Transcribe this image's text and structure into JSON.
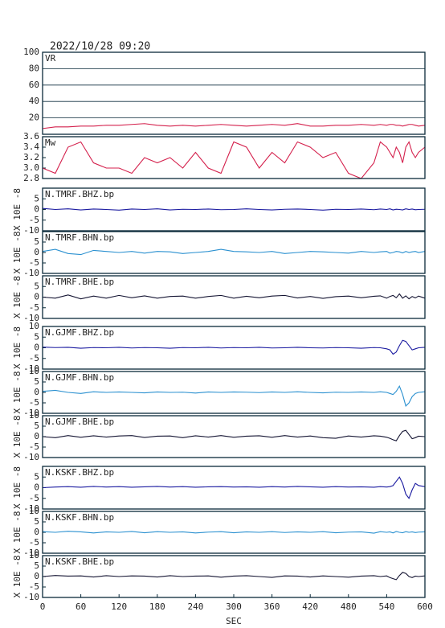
{
  "title": "2022/10/28 09:20",
  "chart_data": [
    {
      "type": "line",
      "title": "VR",
      "color": "#d4204c",
      "ylim": [
        0,
        100
      ],
      "yticks": [
        20,
        40,
        60,
        80,
        100
      ],
      "grid": true,
      "xlim": [
        0,
        600
      ],
      "x": [
        0,
        20,
        40,
        60,
        80,
        100,
        120,
        140,
        160,
        180,
        200,
        220,
        240,
        260,
        280,
        300,
        320,
        340,
        360,
        380,
        400,
        420,
        440,
        460,
        480,
        500,
        520,
        530,
        540,
        545,
        550,
        555,
        560,
        565,
        570,
        575,
        580,
        585,
        590,
        600
      ],
      "values": [
        7,
        9,
        9,
        10,
        10,
        11,
        11,
        12,
        13,
        11,
        10,
        11,
        10,
        11,
        12,
        11,
        10,
        11,
        12,
        11,
        13,
        10,
        10,
        11,
        11,
        12,
        11,
        12,
        11,
        12,
        12,
        11,
        11,
        10,
        11,
        12,
        12,
        11,
        10,
        11
      ]
    },
    {
      "type": "line",
      "title": "Mw",
      "color": "#d4204c",
      "ylim": [
        2.8,
        3.6
      ],
      "yticks": [
        2.8,
        {
          "value": 3.0,
          "label": "3.0"
        },
        3.2,
        3.4,
        3.6
      ],
      "xlim": [
        0,
        600
      ],
      "x": [
        0,
        20,
        40,
        60,
        80,
        100,
        120,
        140,
        160,
        180,
        200,
        220,
        240,
        260,
        280,
        300,
        320,
        340,
        360,
        380,
        400,
        420,
        440,
        460,
        480,
        500,
        520,
        530,
        540,
        545,
        550,
        555,
        560,
        565,
        570,
        575,
        580,
        585,
        590,
        600
      ],
      "values": [
        3.0,
        2.9,
        3.4,
        3.5,
        3.1,
        3.0,
        3.0,
        2.9,
        3.2,
        3.1,
        3.2,
        3.0,
        3.3,
        3.0,
        2.9,
        3.5,
        3.4,
        3.0,
        3.3,
        3.1,
        3.5,
        3.4,
        3.2,
        3.3,
        2.9,
        2.8,
        3.1,
        3.5,
        3.4,
        3.3,
        3.2,
        3.4,
        3.3,
        3.1,
        3.4,
        3.5,
        3.3,
        3.2,
        3.3,
        3.4
      ]
    },
    {
      "type": "line",
      "title": "N.TMRF.BHZ.bp",
      "ylabel": "X 10E -8",
      "color": "#1a1aa0",
      "ylim": [
        -10,
        10
      ],
      "yticks": [
        -10,
        -5,
        0,
        5
      ],
      "xlim": [
        0,
        600
      ],
      "x": [
        0,
        20,
        40,
        60,
        80,
        100,
        120,
        140,
        160,
        180,
        200,
        220,
        240,
        260,
        280,
        300,
        320,
        340,
        360,
        380,
        400,
        420,
        440,
        460,
        480,
        500,
        520,
        530,
        540,
        545,
        550,
        555,
        560,
        565,
        570,
        575,
        580,
        585,
        590,
        600
      ],
      "values": [
        0.5,
        0,
        0.3,
        -0.2,
        0.2,
        0,
        -0.3,
        0.2,
        0,
        0.3,
        -0.2,
        0.1,
        0,
        0.2,
        -0.1,
        0,
        0.3,
        0,
        -0.2,
        0.1,
        0.2,
        0,
        -0.3,
        0.1,
        0,
        0.2,
        -0.1,
        0.2,
        0,
        0.3,
        -0.2,
        0.1,
        0,
        -0.2,
        0.3,
        0,
        0.2,
        -0.1,
        0,
        0.1
      ]
    },
    {
      "type": "line",
      "title": "N.TMRF.BHN.bp",
      "ylabel": "X 10E -8",
      "color": "#2a90d0",
      "ylim": [
        -10,
        10
      ],
      "yticks": [
        -10,
        -5,
        0,
        5
      ],
      "xlim": [
        0,
        600
      ],
      "x": [
        0,
        20,
        40,
        60,
        80,
        100,
        120,
        140,
        160,
        180,
        200,
        220,
        240,
        260,
        280,
        300,
        320,
        340,
        360,
        380,
        400,
        420,
        440,
        460,
        480,
        500,
        520,
        530,
        540,
        545,
        550,
        555,
        560,
        565,
        570,
        575,
        580,
        585,
        590,
        600
      ],
      "values": [
        0.5,
        1.5,
        -0.5,
        -1,
        1,
        0.5,
        0,
        0.5,
        -0.3,
        0.5,
        0.3,
        -0.5,
        0,
        0.5,
        1.5,
        0.5,
        0.3,
        0,
        0.5,
        -0.5,
        0,
        0.5,
        0.3,
        0,
        -0.3,
        0.5,
        0,
        0.3,
        0.5,
        -0.3,
        0,
        0.5,
        0.3,
        -0.2,
        0.5,
        0,
        0.3,
        0.5,
        0,
        0.5
      ]
    },
    {
      "type": "line",
      "title": "N.TMRF.BHE.bp",
      "ylabel": "X 10E -8",
      "color": "#141432",
      "ylim": [
        -10,
        10
      ],
      "yticks": [
        -10,
        -5,
        0,
        5
      ],
      "xlim": [
        0,
        600
      ],
      "x": [
        0,
        20,
        40,
        60,
        80,
        100,
        120,
        140,
        160,
        180,
        200,
        220,
        240,
        260,
        280,
        300,
        320,
        340,
        360,
        380,
        400,
        420,
        440,
        460,
        480,
        500,
        520,
        530,
        540,
        545,
        550,
        555,
        560,
        565,
        570,
        575,
        580,
        585,
        590,
        600
      ],
      "values": [
        0,
        -0.5,
        1,
        -0.8,
        0.5,
        -0.5,
        0.8,
        -0.3,
        0.6,
        -0.5,
        0.3,
        0.5,
        -0.5,
        0.3,
        0.8,
        -0.5,
        0.4,
        -0.3,
        0.5,
        0.8,
        -0.4,
        0.3,
        -0.6,
        0.2,
        0.5,
        -0.3,
        0.4,
        0.6,
        -0.5,
        0.3,
        0.8,
        -0.3,
        1.5,
        -0.5,
        0.6,
        -0.8,
        0.3,
        -0.4,
        0.5,
        -0.5
      ]
    },
    {
      "type": "line",
      "title": "N.GJMF.BHZ.bp",
      "ylabel": "X 10E -8",
      "color": "#1a1aa0",
      "ylim": [
        -10,
        10
      ],
      "yticks": [
        -10,
        -5,
        0,
        5,
        10
      ],
      "xlim": [
        0,
        600
      ],
      "x": [
        0,
        20,
        40,
        60,
        80,
        100,
        120,
        140,
        160,
        180,
        200,
        220,
        240,
        260,
        280,
        300,
        320,
        340,
        360,
        380,
        400,
        420,
        440,
        460,
        480,
        500,
        520,
        530,
        540,
        545,
        550,
        555,
        560,
        565,
        570,
        575,
        580,
        585,
        590,
        600
      ],
      "values": [
        0.3,
        0.1,
        0.2,
        -0.2,
        0.1,
        0,
        0.2,
        -0.1,
        0.1,
        0,
        -0.2,
        0.1,
        0,
        0.2,
        -0.1,
        0.1,
        0,
        0.2,
        -0.1,
        0,
        0.2,
        0,
        -0.1,
        0.1,
        0,
        -0.2,
        0.1,
        0,
        -0.5,
        -1,
        -3,
        -2,
        1,
        3.5,
        3,
        1,
        -1,
        -0.5,
        0,
        0.2
      ]
    },
    {
      "type": "line",
      "title": "N.GJMF.BHN.bp",
      "ylabel": "X 10E -8",
      "color": "#2a90d0",
      "ylim": [
        -10,
        10
      ],
      "yticks": [
        -10,
        -5,
        0,
        5,
        10
      ],
      "xlim": [
        0,
        600
      ],
      "x": [
        0,
        20,
        40,
        60,
        80,
        100,
        120,
        140,
        160,
        180,
        200,
        220,
        240,
        260,
        280,
        300,
        320,
        340,
        360,
        380,
        400,
        420,
        440,
        460,
        480,
        500,
        520,
        530,
        540,
        545,
        550,
        555,
        560,
        565,
        570,
        575,
        580,
        585,
        590,
        600
      ],
      "values": [
        0.5,
        1,
        0,
        -0.5,
        0.3,
        0,
        0.2,
        0,
        -0.2,
        0.2,
        0,
        0.1,
        -0.3,
        0.2,
        0,
        0.2,
        0.1,
        -0.1,
        0.2,
        0,
        0.3,
        0,
        -0.2,
        0.1,
        0,
        0.2,
        0,
        0.3,
        0,
        -0.5,
        -1,
        0.5,
        3,
        -1,
        -6.5,
        -5,
        -2,
        -0.5,
        0,
        0.3
      ]
    },
    {
      "type": "line",
      "title": "N.GJMF.BHE.bp",
      "ylabel": "X 10E -8",
      "color": "#141432",
      "ylim": [
        -10,
        10
      ],
      "yticks": [
        -10,
        -5,
        0,
        5,
        10
      ],
      "xlim": [
        0,
        600
      ],
      "x": [
        0,
        20,
        40,
        60,
        80,
        100,
        120,
        140,
        160,
        180,
        200,
        220,
        240,
        260,
        280,
        300,
        320,
        340,
        360,
        380,
        400,
        420,
        440,
        460,
        480,
        500,
        520,
        530,
        540,
        545,
        550,
        555,
        560,
        565,
        570,
        575,
        580,
        585,
        590,
        600
      ],
      "values": [
        0,
        -0.5,
        0.5,
        -0.3,
        0.4,
        -0.2,
        0.3,
        0.5,
        -0.4,
        0.2,
        0.3,
        -0.5,
        0.4,
        -0.2,
        0.5,
        -0.3,
        0.2,
        0.4,
        -0.3,
        0.5,
        -0.2,
        0.3,
        -0.5,
        -0.8,
        0.3,
        -0.2,
        0.4,
        0.2,
        -0.3,
        -0.8,
        -1.5,
        -2,
        0.5,
        2.5,
        3,
        1,
        -1,
        -0.5,
        0.2,
        0
      ]
    },
    {
      "type": "line",
      "title": "N.KSKF.BHZ.bp",
      "ylabel": "X 10E -8",
      "color": "#1a1aa0",
      "ylim": [
        -10,
        10
      ],
      "yticks": [
        -10,
        -5,
        0,
        5
      ],
      "xlim": [
        0,
        600
      ],
      "x": [
        0,
        20,
        40,
        60,
        80,
        100,
        120,
        140,
        160,
        180,
        200,
        220,
        240,
        260,
        280,
        300,
        320,
        340,
        360,
        380,
        400,
        420,
        440,
        460,
        480,
        500,
        520,
        530,
        540,
        545,
        550,
        555,
        560,
        565,
        570,
        575,
        580,
        585,
        590,
        600
      ],
      "values": [
        0,
        0.3,
        0.5,
        0.2,
        0.6,
        0.3,
        0.5,
        0.2,
        0.4,
        0.6,
        0.3,
        0.5,
        0.2,
        0.4,
        0.5,
        0.3,
        0.4,
        0.2,
        0.5,
        0.3,
        0.6,
        0.4,
        0.2,
        0.5,
        0.3,
        0.4,
        0.2,
        0.5,
        0.3,
        0.5,
        1,
        3,
        5,
        2,
        -3,
        -5,
        -1,
        2,
        1,
        0.5
      ]
    },
    {
      "type": "line",
      "title": "N.KSKF.BHN.bp",
      "ylabel": "X 10E -8",
      "color": "#2a90d0",
      "ylim": [
        -10,
        10
      ],
      "yticks": [
        -10,
        -5,
        0,
        5,
        10
      ],
      "xlim": [
        0,
        600
      ],
      "x": [
        0,
        20,
        40,
        60,
        80,
        100,
        120,
        140,
        160,
        180,
        200,
        220,
        240,
        260,
        280,
        300,
        320,
        340,
        360,
        380,
        400,
        420,
        440,
        460,
        480,
        500,
        520,
        530,
        540,
        545,
        550,
        555,
        560,
        565,
        570,
        575,
        580,
        585,
        590,
        600
      ],
      "values": [
        0.3,
        0,
        0.5,
        0.2,
        -0.3,
        0.2,
        0,
        0.4,
        -0.2,
        0.3,
        0,
        0.2,
        -0.3,
        0.1,
        0.3,
        -0.2,
        0.2,
        0,
        0.3,
        -0.1,
        0.2,
        0,
        0.3,
        -0.2,
        0.1,
        0.2,
        -0.4,
        0.3,
        0,
        0.2,
        -0.3,
        0.4,
        0,
        -0.2,
        0.3,
        0,
        0.2,
        -0.1,
        0.1,
        0.2
      ]
    },
    {
      "type": "line",
      "title": "N.KSKF.BHE.bp",
      "ylabel": "X 10E -8",
      "color": "#141432",
      "ylim": [
        -10,
        10
      ],
      "yticks": [
        -10,
        -5,
        0,
        5,
        10
      ],
      "xlim": [
        0,
        600
      ],
      "xlabel": "SEC",
      "xticks": [
        0,
        60,
        120,
        180,
        240,
        300,
        360,
        420,
        480,
        540,
        600
      ],
      "x": [
        0,
        20,
        40,
        60,
        80,
        100,
        120,
        140,
        160,
        180,
        200,
        220,
        240,
        260,
        280,
        300,
        320,
        340,
        360,
        380,
        400,
        420,
        440,
        460,
        480,
        500,
        520,
        530,
        540,
        545,
        550,
        555,
        560,
        565,
        570,
        575,
        580,
        585,
        590,
        600
      ],
      "values": [
        0,
        0.5,
        0.2,
        0.3,
        -0.2,
        0.4,
        0,
        0.3,
        0.2,
        -0.2,
        0.4,
        0,
        0.2,
        0.3,
        -0.3,
        0.2,
        0.4,
        0,
        -0.4,
        0.3,
        0.2,
        -0.2,
        0.3,
        0,
        -0.3,
        0.2,
        0.4,
        0,
        0.3,
        -0.5,
        -1,
        -1.5,
        0.5,
        2,
        1.5,
        0,
        -0.5,
        0.2,
        0,
        0.3
      ]
    }
  ]
}
